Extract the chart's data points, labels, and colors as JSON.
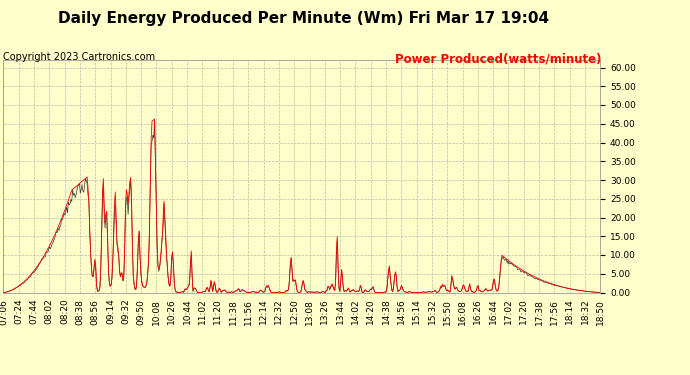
{
  "title": "Daily Energy Produced Per Minute (Wm) Fri Mar 17 19:04",
  "copyright": "Copyright 2023 Cartronics.com",
  "legend_label": "Power Produced(watts/minute)",
  "ylim": [
    0,
    62
  ],
  "yticks": [
    0,
    5,
    10,
    15,
    20,
    25,
    30,
    35,
    40,
    45,
    50,
    55,
    60
  ],
  "bg_color": "#ffffcc",
  "grid_color": "#aaaaaa",
  "line_color_red": "#ff0000",
  "line_color_dark": "#333333",
  "title_fontsize": 11,
  "copyright_fontsize": 7,
  "legend_fontsize": 8.5,
  "tick_fontsize": 6.5,
  "xtick_labels": [
    "07:06",
    "07:24",
    "07:44",
    "08:02",
    "08:20",
    "08:38",
    "08:56",
    "09:14",
    "09:32",
    "09:50",
    "10:08",
    "10:26",
    "10:44",
    "11:02",
    "11:20",
    "11:38",
    "11:56",
    "12:14",
    "12:32",
    "12:50",
    "13:08",
    "13:26",
    "13:44",
    "14:02",
    "14:20",
    "14:38",
    "14:56",
    "15:14",
    "15:32",
    "15:50",
    "16:08",
    "16:26",
    "16:44",
    "17:02",
    "17:20",
    "17:38",
    "17:56",
    "18:14",
    "18:32",
    "18:50"
  ]
}
